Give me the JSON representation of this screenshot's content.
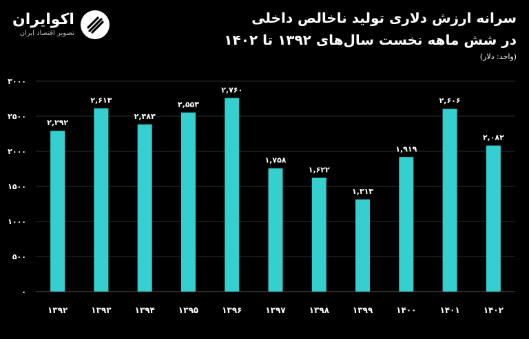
{
  "brand": {
    "name": "اکوایران",
    "tagline": "تصویر اقتصاد ایران",
    "logo_icon": "ecoiran-logo-icon"
  },
  "header": {
    "title_line1": "سرانه ارزش دلاری تولید ناخالص داخلی",
    "title_line2": "در شش ماهه نخست سال‌های ۱۳۹۲ تا ۱۴۰۲",
    "unit": "(واحد: دلار)"
  },
  "colors": {
    "background": "#000000",
    "bar": "#36CFCF",
    "grid": "#2e2e2e",
    "text": "#ffffff"
  },
  "chart_data": {
    "type": "bar",
    "categories": [
      "۱۳۹۲",
      "۱۳۹۳",
      "۱۳۹۴",
      "۱۳۹۵",
      "۱۳۹۶",
      "۱۳۹۷",
      "۱۳۹۸",
      "۱۳۹۹",
      "۱۴۰۰",
      "۱۴۰۱",
      "۱۴۰۲"
    ],
    "values": [
      2292,
      2613,
      2383,
      2553,
      2760,
      1758,
      1622,
      1313,
      1919,
      2606,
      2082
    ],
    "data_labels": [
      "۲,۲۹۲",
      "۲,۶۱۳",
      "۲,۳۸۳",
      "۲,۵۵۳",
      "۲,۷۶۰",
      "۱,۷۵۸",
      "۱,۶۲۲",
      "۱,۳۱۳",
      "۱,۹۱۹",
      "۲,۶۰۶",
      "۲,۰۸۲"
    ],
    "yticks": [
      0,
      500,
      1000,
      1500,
      2000,
      2500,
      3000
    ],
    "ytick_labels": [
      "۰",
      "۵۰۰",
      "۱۰۰۰",
      "۱۵۰۰",
      "۲۰۰۰",
      "۲۵۰۰",
      "۳۰۰۰"
    ],
    "ylim": [
      0,
      3000
    ],
    "grid": true,
    "legend": "none",
    "xlabel": "",
    "ylabel": ""
  }
}
